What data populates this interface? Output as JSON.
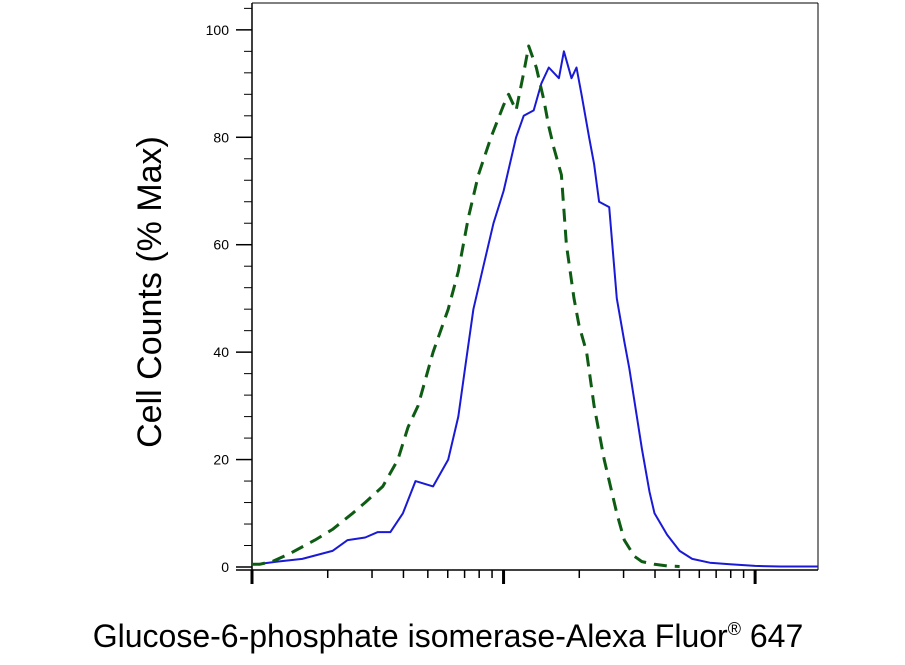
{
  "chart_data": {
    "type": "line",
    "title": "",
    "xlabel": "Glucose-6-phosphate isomerase-Alexa Fluor",
    "xlabel_superscript": "®",
    "xlabel_suffix": " 647",
    "ylabel": "Cell Counts (% Max)",
    "x_scale": "log",
    "x_range": [
      0,
      2.25
    ],
    "ylim": [
      0,
      105
    ],
    "y_ticks": [
      0,
      20,
      40,
      60,
      80,
      100
    ],
    "y_tick_labels": [
      "0",
      "20",
      "40",
      "60",
      "80",
      "100"
    ],
    "x_decades": [
      0,
      1,
      2
    ],
    "grid": false,
    "series": [
      {
        "style": "solid",
        "color": "#1a1ad6",
        "x": [
          0.02,
          0.1,
          0.2,
          0.32,
          0.38,
          0.45,
          0.5,
          0.55,
          0.6,
          0.65,
          0.72,
          0.78,
          0.82,
          0.85,
          0.88,
          0.92,
          0.96,
          1.0,
          1.05,
          1.08,
          1.12,
          1.15,
          1.18,
          1.22,
          1.24,
          1.27,
          1.29,
          1.31,
          1.34,
          1.36,
          1.38,
          1.42,
          1.45,
          1.48,
          1.5,
          1.55,
          1.58,
          1.6,
          1.65,
          1.7,
          1.75,
          1.82,
          1.9,
          2.0,
          2.1,
          2.25
        ],
        "y": [
          0.5,
          1,
          1.5,
          3,
          5,
          5.5,
          6.5,
          6.5,
          10,
          16,
          15,
          20,
          28,
          38,
          48,
          56,
          64,
          70,
          80,
          84,
          85,
          90,
          93,
          91,
          96,
          91,
          93,
          88,
          80,
          75,
          68,
          67,
          50,
          42,
          37,
          22,
          14,
          10,
          6,
          3,
          1.5,
          0.8,
          0.5,
          0.2,
          0.1,
          0.1
        ]
      },
      {
        "style": "dashed",
        "color": "#0e5c14",
        "x": [
          0.0,
          0.03,
          0.08,
          0.15,
          0.25,
          0.32,
          0.4,
          0.45,
          0.52,
          0.58,
          0.62,
          0.66,
          0.72,
          0.78,
          0.82,
          0.86,
          0.9,
          0.95,
          1.0,
          1.02,
          1.05,
          1.08,
          1.1,
          1.13,
          1.16,
          1.18,
          1.2,
          1.23,
          1.25,
          1.28,
          1.3,
          1.33,
          1.36,
          1.4,
          1.45,
          1.48,
          1.52,
          1.55,
          1.6,
          1.65,
          1.7
        ],
        "y": [
          0.5,
          0.5,
          1,
          2.5,
          5,
          7,
          10,
          12,
          15,
          20,
          26,
          30,
          40,
          48,
          55,
          65,
          73,
          80,
          86,
          88,
          85,
          92,
          97,
          93,
          87,
          82,
          78,
          73,
          60,
          50,
          45,
          40,
          30,
          20,
          10,
          5,
          2,
          1,
          0.5,
          0.2,
          0.1
        ]
      }
    ]
  }
}
